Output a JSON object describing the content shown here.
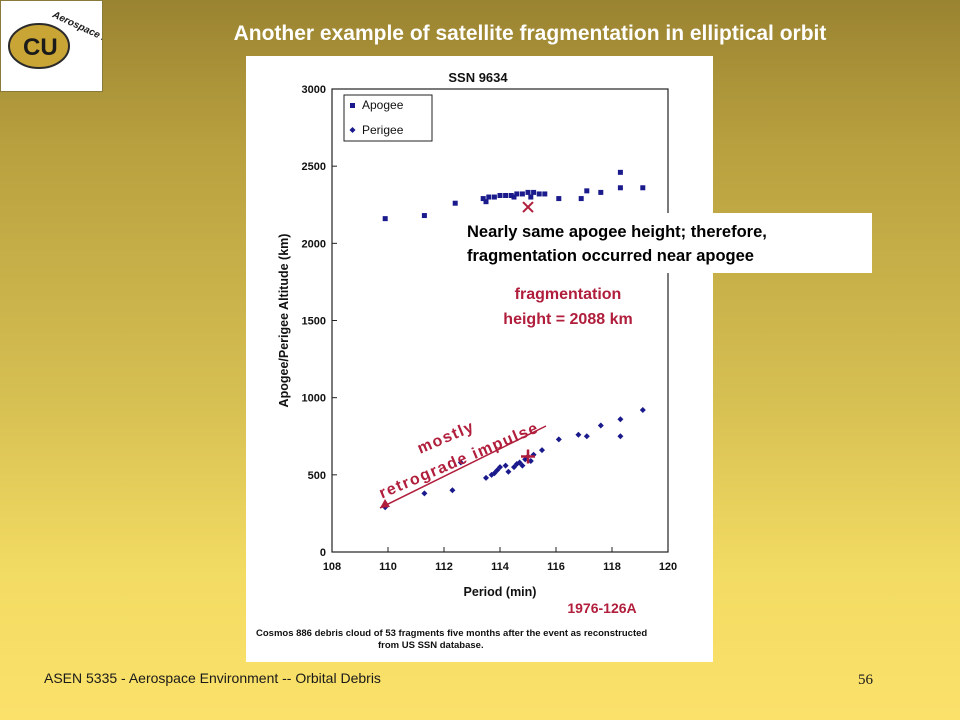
{
  "slide": {
    "title": "Another example of satellite fragmentation in elliptical orbit",
    "footer_left": "ASEN 5335 - Aerospace Environment -- Orbital Debris",
    "page_number": "56",
    "logo_text": "Aerospace Engineering",
    "logo_monogram": "CU"
  },
  "annotations": {
    "note_line1": "Nearly same apogee  height; therefore,",
    "note_line2": "fragmentation occurred near apogee",
    "frag_line1": "fragmentation",
    "frag_line2": "height = 2088 km",
    "impulse_line1": "mostly",
    "impulse_line2": "retrograde impulse",
    "designator": "1976-126A",
    "caption_line1": "Cosmos 886 debris cloud of 53 fragments five months after the event as reconstructed",
    "caption_line2": "from US SSN database."
  },
  "chart_data": {
    "type": "scatter",
    "title": "SSN 9634",
    "xlabel": "Period (min)",
    "ylabel": "Apogee/Perigee Altitude (km)",
    "xlim": [
      108,
      120
    ],
    "ylim": [
      0,
      3000
    ],
    "xticks": [
      "108",
      "110",
      "112",
      "114",
      "116",
      "118",
      "120"
    ],
    "yticks": [
      "0",
      "500",
      "1000",
      "1500",
      "2000",
      "2500",
      "3000"
    ],
    "legend_position": "top-left",
    "colors": {
      "data": "#1a1a8c",
      "annotation": "#b01e3c"
    },
    "series": [
      {
        "name": "Apogee",
        "marker": "square",
        "points": [
          [
            109.9,
            2160
          ],
          [
            111.3,
            2180
          ],
          [
            112.4,
            2260
          ],
          [
            113.4,
            2290
          ],
          [
            113.6,
            2300
          ],
          [
            113.8,
            2300
          ],
          [
            114.0,
            2310
          ],
          [
            114.2,
            2310
          ],
          [
            114.4,
            2310
          ],
          [
            114.6,
            2320
          ],
          [
            114.8,
            2320
          ],
          [
            115.0,
            2330
          ],
          [
            115.2,
            2330
          ],
          [
            115.4,
            2320
          ],
          [
            115.6,
            2320
          ],
          [
            116.1,
            2290
          ],
          [
            116.9,
            2290
          ],
          [
            117.1,
            2340
          ],
          [
            117.6,
            2330
          ],
          [
            118.3,
            2360
          ],
          [
            119.1,
            2360
          ],
          [
            118.3,
            2460
          ],
          [
            113.5,
            2270
          ],
          [
            114.5,
            2300
          ],
          [
            115.1,
            2300
          ]
        ]
      },
      {
        "name": "Perigee",
        "marker": "diamond",
        "points": [
          [
            109.9,
            290
          ],
          [
            111.3,
            380
          ],
          [
            112.3,
            400
          ],
          [
            112.6,
            580
          ],
          [
            113.5,
            480
          ],
          [
            113.7,
            500
          ],
          [
            113.9,
            530
          ],
          [
            114.0,
            550
          ],
          [
            114.3,
            520
          ],
          [
            114.5,
            550
          ],
          [
            114.6,
            570
          ],
          [
            114.8,
            560
          ],
          [
            114.9,
            600
          ],
          [
            115.0,
            620
          ],
          [
            115.1,
            590
          ],
          [
            115.2,
            630
          ],
          [
            115.5,
            660
          ],
          [
            116.1,
            730
          ],
          [
            116.8,
            760
          ],
          [
            117.1,
            750
          ],
          [
            117.6,
            820
          ],
          [
            118.3,
            750
          ],
          [
            118.3,
            860
          ],
          [
            119.1,
            920
          ],
          [
            113.8,
            510
          ],
          [
            114.2,
            560
          ],
          [
            114.7,
            580
          ]
        ]
      }
    ],
    "fragmentation_point": {
      "x": 115.0,
      "apogee": 2300,
      "perigee": 580
    }
  }
}
